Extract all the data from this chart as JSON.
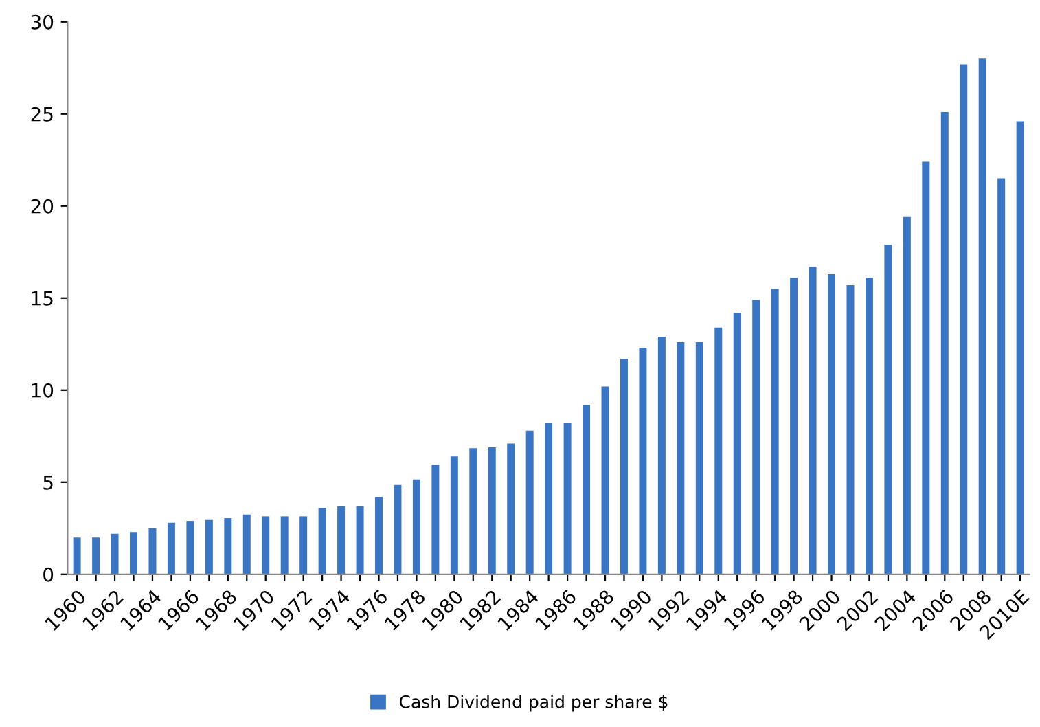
{
  "chart_data": {
    "type": "bar",
    "categories": [
      "1960",
      null,
      "1962",
      null,
      "1964",
      null,
      "1966",
      null,
      "1968",
      null,
      "1970",
      null,
      "1972",
      null,
      "1974",
      null,
      "1976",
      null,
      "1978",
      null,
      "1980",
      null,
      "1982",
      null,
      "1984",
      null,
      "1986",
      null,
      "1988",
      null,
      "1990",
      null,
      "1992",
      null,
      "1994",
      null,
      "1996",
      null,
      "1998",
      null,
      "2000",
      null,
      "2002",
      null,
      "2004",
      null,
      "2006",
      null,
      "2008",
      null,
      "2010E"
    ],
    "series": [
      {
        "name": "Cash Dividend paid per share $",
        "color": "#3a75c4",
        "values": [
          2.0,
          2.0,
          2.2,
          2.3,
          2.5,
          2.8,
          2.9,
          2.95,
          3.05,
          3.25,
          3.15,
          3.15,
          3.15,
          3.6,
          3.7,
          3.7,
          4.2,
          4.85,
          5.15,
          5.95,
          6.4,
          6.85,
          6.9,
          7.1,
          7.8,
          8.2,
          8.2,
          9.2,
          10.2,
          11.7,
          12.3,
          12.9,
          12.6,
          12.6,
          13.4,
          14.2,
          14.9,
          15.5,
          16.1,
          16.7,
          16.3,
          15.7,
          16.1,
          17.9,
          19.4,
          22.4,
          25.1,
          27.7,
          28.0,
          21.5,
          24.6
        ]
      }
    ],
    "ylim": [
      0,
      30
    ],
    "yticks": [
      0,
      5,
      10,
      15,
      20,
      25,
      30
    ],
    "grid": false,
    "legend": "bottom"
  }
}
